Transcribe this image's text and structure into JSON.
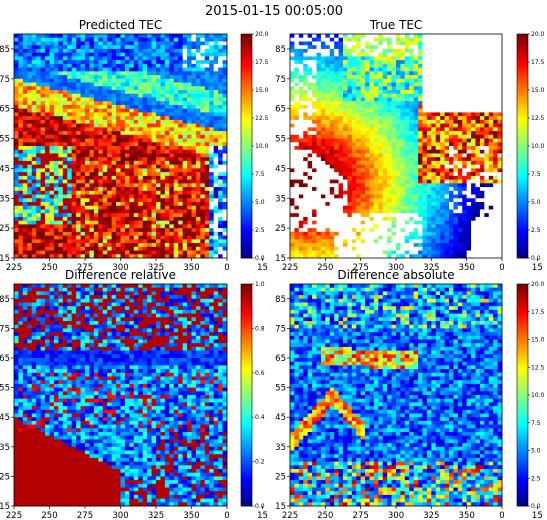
{
  "figure": {
    "suptitle": "2015-01-15 00:05:00"
  },
  "chart_data": [
    {
      "type": "heatmap",
      "title": "Predicted TEC",
      "variant": "predicted",
      "xlim": [
        225,
        375
      ],
      "ylim": [
        15,
        90
      ],
      "x_ticks": [
        "225",
        "250",
        "275",
        "300",
        "325",
        "350",
        "0",
        "15"
      ],
      "y_ticks": [
        "15",
        "25",
        "35",
        "45",
        "55",
        "65",
        "75",
        "85"
      ],
      "colormap": "jet",
      "colorbar": {
        "min": 0.0,
        "max": 20.0,
        "ticks": [
          "0.0",
          "2.5",
          "5.0",
          "7.5",
          "10.0",
          "12.5",
          "15.0",
          "17.5",
          "20.0"
        ]
      }
    },
    {
      "type": "heatmap",
      "title": "True TEC",
      "variant": "true",
      "missing_data_color": "#ffffff",
      "xlim": [
        225,
        375
      ],
      "ylim": [
        15,
        90
      ],
      "x_ticks": [
        "225",
        "250",
        "275",
        "300",
        "325",
        "350",
        "0",
        "15"
      ],
      "y_ticks": [
        "15",
        "25",
        "35",
        "45",
        "55",
        "65",
        "75",
        "85"
      ],
      "colormap": "jet",
      "colorbar": {
        "min": 0.0,
        "max": 20.0,
        "ticks": [
          "0.0",
          "2.5",
          "5.0",
          "7.5",
          "10.0",
          "12.5",
          "15.0",
          "17.5",
          "20.0"
        ]
      }
    },
    {
      "type": "heatmap",
      "title": "Difference relative",
      "variant": "relative",
      "xlim": [
        225,
        375
      ],
      "ylim": [
        15,
        90
      ],
      "x_ticks": [
        "225",
        "250",
        "275",
        "300",
        "325",
        "350",
        "0",
        "15"
      ],
      "y_ticks": [
        "15",
        "25",
        "35",
        "45",
        "55",
        "65",
        "75",
        "85"
      ],
      "colormap": "jet",
      "colorbar": {
        "min": 0.0,
        "max": 1.0,
        "ticks": [
          "0.0",
          "0.2",
          "0.4",
          "0.6",
          "0.8",
          "1.0"
        ]
      }
    },
    {
      "type": "heatmap",
      "title": "Difference absolute",
      "variant": "absolute",
      "xlim": [
        225,
        375
      ],
      "ylim": [
        15,
        90
      ],
      "x_ticks": [
        "225",
        "250",
        "275",
        "300",
        "325",
        "350",
        "0",
        "15"
      ],
      "y_ticks": [
        "15",
        "25",
        "35",
        "45",
        "55",
        "65",
        "75",
        "85"
      ],
      "colormap": "jet",
      "colorbar": {
        "min": 0.0,
        "max": 20.0,
        "ticks": [
          "0.0",
          "2.5",
          "5.0",
          "7.5",
          "10.0",
          "12.5",
          "15.0",
          "17.5",
          "20.0"
        ]
      }
    }
  ]
}
